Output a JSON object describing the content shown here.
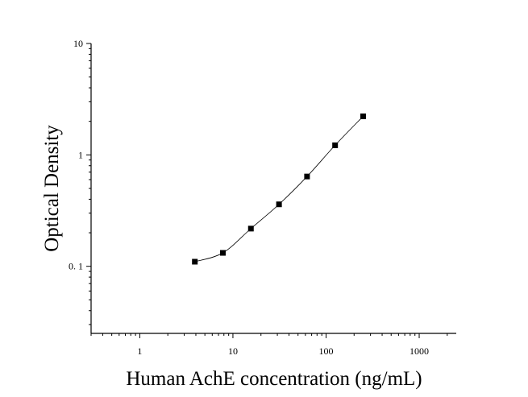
{
  "chart_data": {
    "type": "scatter",
    "xlabel": "Human AchE concentration (ng/mL)",
    "ylabel": "Optical Density",
    "xscale": "log",
    "yscale": "log",
    "xlim": [
      0.3,
      2500
    ],
    "ylim": [
      0.025,
      10
    ],
    "grid": false,
    "legend": "none",
    "x_ticks": [
      {
        "value": 1,
        "label": "1"
      },
      {
        "value": 10,
        "label": "10"
      },
      {
        "value": 100,
        "label": "100"
      },
      {
        "value": 1000,
        "label": "1000"
      }
    ],
    "y_ticks": [
      {
        "value": 0.1,
        "label": "0. 1"
      },
      {
        "value": 1,
        "label": "1"
      },
      {
        "value": 10,
        "label": "10"
      }
    ],
    "series": [
      {
        "x": [
          3.9,
          7.8,
          15.6,
          31.25,
          62.5,
          125,
          250
        ],
        "y": [
          0.11,
          0.132,
          0.218,
          0.36,
          0.64,
          1.22,
          2.22
        ],
        "marker": "square",
        "color": "#000000",
        "fit_line": true
      }
    ]
  }
}
